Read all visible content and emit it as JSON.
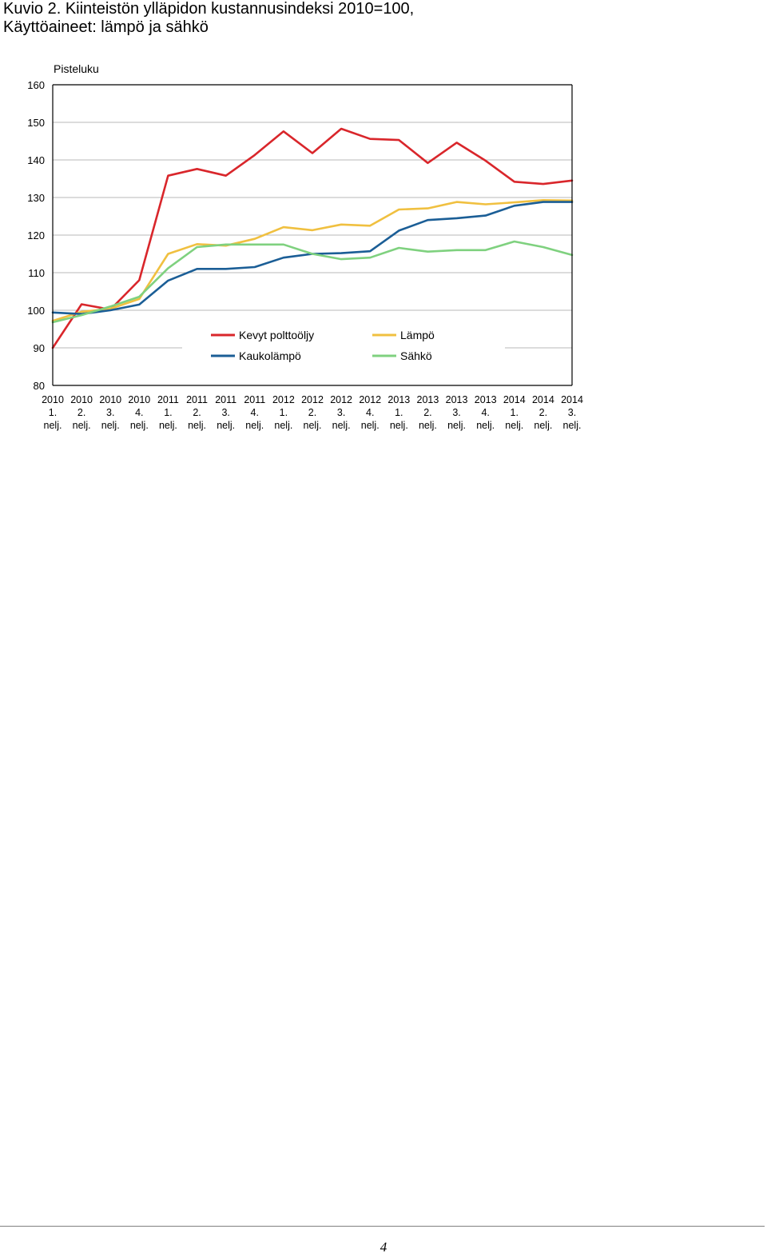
{
  "title": {
    "line1": "Kuvio 2. Kiinteistön ylläpidon kustannusindeksi 2010=100,",
    "line2": "Käyttöaineet: lämpö ja sähkö"
  },
  "page_number": "4",
  "chart_data": {
    "type": "line",
    "title": "",
    "xlabel": "",
    "ylabel": "Pisteluku",
    "ylim": [
      80,
      160
    ],
    "yticks": [
      80,
      90,
      100,
      110,
      120,
      130,
      140,
      150,
      160
    ],
    "grid": true,
    "legend_position": "inside-lower",
    "categories": [
      [
        "2010",
        "1.",
        "nelj."
      ],
      [
        "2010",
        "2.",
        "nelj."
      ],
      [
        "2010",
        "3.",
        "nelj."
      ],
      [
        "2010",
        "4.",
        "nelj."
      ],
      [
        "2011",
        "1.",
        "nelj."
      ],
      [
        "2011",
        "2.",
        "nelj."
      ],
      [
        "2011",
        "3.",
        "nelj."
      ],
      [
        "2011",
        "4.",
        "nelj."
      ],
      [
        "2012",
        "1.",
        "nelj."
      ],
      [
        "2012",
        "2.",
        "nelj."
      ],
      [
        "2012",
        "3.",
        "nelj."
      ],
      [
        "2012",
        "4.",
        "nelj."
      ],
      [
        "2013",
        "1.",
        "nelj."
      ],
      [
        "2013",
        "2.",
        "nelj."
      ],
      [
        "2013",
        "3.",
        "nelj."
      ],
      [
        "2013",
        "4.",
        "nelj."
      ],
      [
        "2014",
        "1.",
        "nelj."
      ],
      [
        "2014",
        "2.",
        "nelj."
      ],
      [
        "2014",
        "3.",
        "nelj."
      ]
    ],
    "series": [
      {
        "name": "Kevyt polttoöljy",
        "color": "#d9262b",
        "values": [
          90.0,
          101.6,
          100.2,
          108.0,
          135.8,
          137.6,
          135.8,
          141.3,
          147.6,
          141.8,
          148.3,
          145.6,
          145.3,
          139.2,
          144.6,
          139.8,
          134.2,
          133.6,
          134.5
        ]
      },
      {
        "name": "Lämpö",
        "color": "#f0c040",
        "values": [
          97.2,
          99.6,
          100.4,
          103.0,
          115.0,
          117.6,
          117.2,
          119.0,
          122.1,
          121.3,
          122.8,
          122.5,
          126.8,
          127.1,
          128.8,
          128.2,
          128.7,
          129.3,
          129.2
        ]
      },
      {
        "name": "Kaukolämpö",
        "color": "#1b5e96",
        "values": [
          99.4,
          99.0,
          100.0,
          101.5,
          107.9,
          111.0,
          111.0,
          111.5,
          114.0,
          115.0,
          115.2,
          115.7,
          121.2,
          124.0,
          124.5,
          125.2,
          127.8,
          128.8,
          128.8
        ]
      },
      {
        "name": "Sähkö",
        "color": "#7fd17f",
        "values": [
          96.8,
          98.7,
          101.0,
          103.6,
          111.2,
          116.8,
          117.5,
          117.5,
          117.5,
          115.0,
          113.6,
          114.0,
          116.6,
          115.6,
          116.0,
          116.0,
          118.3,
          116.8,
          114.7
        ]
      }
    ]
  }
}
